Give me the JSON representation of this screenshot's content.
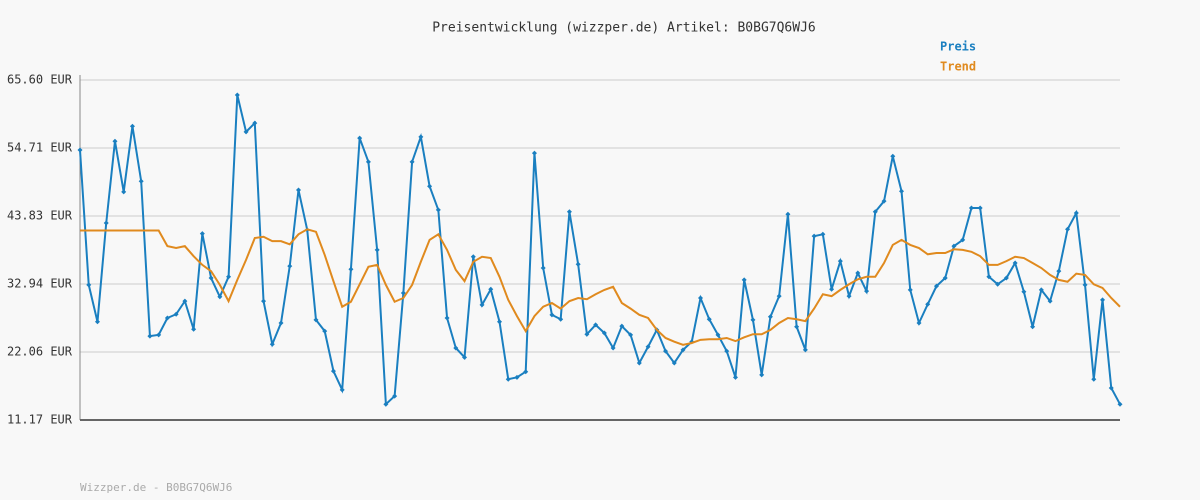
{
  "chart_data": {
    "type": "line",
    "title": "Preisentwicklung (wizzper.de) Artikel: B0BG7Q6WJ6",
    "footer": "Wizzper.de - B0BG7Q6WJ6",
    "ylim": [
      11.17,
      65.6
    ],
    "yticks": [
      {
        "value": 11.17,
        "label": "11.17 EUR"
      },
      {
        "value": 22.06,
        "label": "22.06 EUR"
      },
      {
        "value": 32.94,
        "label": "32.94 EUR"
      },
      {
        "value": 43.83,
        "label": "43.83 EUR"
      },
      {
        "value": 54.71,
        "label": "54.71 EUR"
      },
      {
        "value": 65.6,
        "label": "65.60 EUR"
      }
    ],
    "grid": true,
    "legend": "top-right",
    "series": [
      {
        "name": "Preis",
        "color": "#1a7fc0",
        "markers": true,
        "values": [
          54.4,
          32.8,
          26.9,
          42.7,
          55.8,
          47.7,
          58.2,
          49.4,
          24.6,
          24.8,
          27.5,
          28.1,
          30.2,
          25.7,
          41.0,
          33.9,
          30.9,
          34.1,
          63.2,
          57.3,
          58.7,
          30.2,
          23.3,
          26.7,
          35.8,
          48.0,
          41.6,
          27.2,
          25.4,
          19.0,
          16.0,
          35.3,
          56.3,
          52.5,
          38.4,
          13.7,
          15.0,
          31.5,
          52.5,
          56.5,
          48.6,
          44.8,
          27.5,
          22.7,
          21.2,
          37.3,
          29.6,
          32.1,
          26.9,
          17.7,
          18.0,
          18.9,
          53.9,
          35.5,
          28.0,
          27.3,
          44.5,
          36.1,
          24.9,
          26.4,
          25.1,
          22.7,
          26.2,
          24.8,
          20.3,
          22.9,
          25.6,
          22.2,
          20.3,
          22.4,
          23.7,
          30.7,
          27.3,
          24.8,
          22.2,
          18.0,
          33.6,
          27.2,
          18.4,
          27.7,
          31.0,
          44.1,
          26.1,
          22.4,
          40.6,
          40.9,
          32.1,
          36.6,
          31.0,
          34.7,
          31.8,
          44.5,
          46.2,
          53.4,
          47.8,
          32.0,
          26.7,
          29.7,
          32.6,
          33.9,
          39.0,
          40.0,
          45.1,
          45.1,
          34.1,
          32.9,
          33.9,
          36.3,
          31.7,
          26.1,
          32.0,
          30.2,
          35.0,
          41.7,
          44.3,
          32.8,
          17.7,
          30.4,
          16.3,
          13.7
        ]
      },
      {
        "name": "Trend",
        "color": "#e08a1e",
        "markers": false,
        "values": [
          41.5,
          41.5,
          41.5,
          41.5,
          41.5,
          41.5,
          41.5,
          41.5,
          41.5,
          41.5,
          39.0,
          38.7,
          39.0,
          37.4,
          36.0,
          35.0,
          32.8,
          30.2,
          33.6,
          36.8,
          40.3,
          40.5,
          39.8,
          39.8,
          39.3,
          40.9,
          41.7,
          41.3,
          37.6,
          33.4,
          29.3,
          30.1,
          32.9,
          35.7,
          36.0,
          32.8,
          30.1,
          30.7,
          32.8,
          36.5,
          40.0,
          40.9,
          38.4,
          35.2,
          33.4,
          36.5,
          37.3,
          37.1,
          34.1,
          30.4,
          27.8,
          25.4,
          27.8,
          29.3,
          29.9,
          29.0,
          30.2,
          30.7,
          30.5,
          31.3,
          32.0,
          32.5,
          29.9,
          29.0,
          28.0,
          27.5,
          25.6,
          24.3,
          23.7,
          23.2,
          23.5,
          24.0,
          24.1,
          24.1,
          24.3,
          23.8,
          24.4,
          24.9,
          24.9,
          25.6,
          26.7,
          27.5,
          27.3,
          27.0,
          29.0,
          31.3,
          31.0,
          32.0,
          32.9,
          33.7,
          34.1,
          34.1,
          36.3,
          39.2,
          40.0,
          39.2,
          38.7,
          37.7,
          37.9,
          37.9,
          38.5,
          38.4,
          38.1,
          37.4,
          36.0,
          36.0,
          36.6,
          37.3,
          37.1,
          36.3,
          35.5,
          34.4,
          33.6,
          33.3,
          34.6,
          34.4,
          32.9,
          32.3,
          30.7,
          29.3
        ]
      }
    ]
  }
}
